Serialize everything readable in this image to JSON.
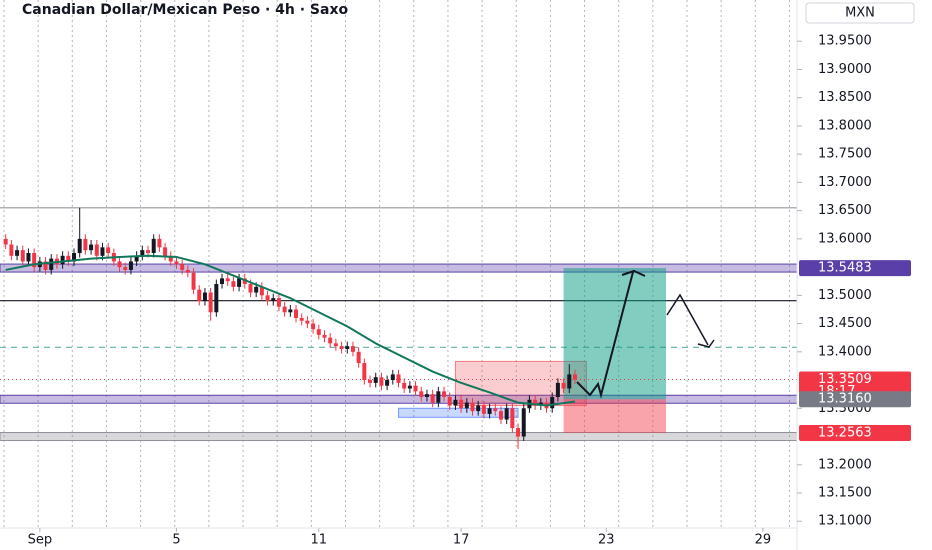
{
  "chart_data": {
    "type": "candlestick",
    "title": "Canadian Dollar/Mexican Peso · 4h · Saxo",
    "currency": "MXN",
    "xlim": [
      -1,
      139
    ],
    "xticks": [
      {
        "value": 6,
        "label": "Sep"
      },
      {
        "value": 30,
        "label": "5"
      },
      {
        "value": 55,
        "label": "11"
      },
      {
        "value": 80,
        "label": "17"
      },
      {
        "value": 105.5,
        "label": "23"
      },
      {
        "value": 133,
        "label": "29"
      }
    ],
    "ylim": [
      13.088,
      14.023
    ],
    "yticks": [
      {
        "value": 13.95,
        "label": "13.9500"
      },
      {
        "value": 13.9,
        "label": "13.9000"
      },
      {
        "value": 13.85,
        "label": "13.8500"
      },
      {
        "value": 13.8,
        "label": "13.8000"
      },
      {
        "value": 13.75,
        "label": "13.7500"
      },
      {
        "value": 13.7,
        "label": "13.7000"
      },
      {
        "value": 13.65,
        "label": "13.6500"
      },
      {
        "value": 13.6,
        "label": "13.6000"
      },
      {
        "value": 13.5,
        "label": "13.5000"
      },
      {
        "value": 13.45,
        "label": "13.4500"
      },
      {
        "value": 13.4,
        "label": "13.4000"
      },
      {
        "value": 13.3,
        "label": "13.3000"
      },
      {
        "value": 13.2,
        "label": "13.2000"
      },
      {
        "value": 13.15,
        "label": "13.1500"
      },
      {
        "value": 13.1,
        "label": "13.1000"
      }
    ],
    "up_color": "#131722",
    "down_color": "#f23645",
    "open": [
      13.6,
      13.59,
      13.57,
      13.58,
      13.56,
      13.575,
      13.55,
      13.56,
      13.545,
      13.565,
      13.555,
      13.57,
      13.56,
      13.575,
      13.6,
      13.58,
      13.59,
      13.57,
      13.585,
      13.575,
      13.56,
      13.55,
      13.545,
      13.56,
      13.57,
      13.58,
      13.575,
      13.6,
      13.585,
      13.57,
      13.56,
      13.555,
      13.545,
      13.54,
      13.51,
      13.49,
      13.505,
      13.47,
      13.52,
      13.53,
      13.525,
      13.515,
      13.53,
      13.52,
      13.505,
      13.515,
      13.5,
      13.49,
      13.495,
      13.48,
      13.47,
      13.475,
      13.46,
      13.455,
      13.45,
      13.44,
      13.43,
      13.425,
      13.415,
      13.41,
      13.405,
      13.41,
      13.4,
      13.38,
      13.35,
      13.345,
      13.355,
      13.34,
      13.35,
      13.36,
      13.345,
      13.335,
      13.34,
      13.33,
      13.32,
      13.325,
      13.31,
      13.33,
      13.32,
      13.305,
      13.315,
      13.3,
      13.31,
      13.295,
      13.305,
      13.29,
      13.3,
      13.295,
      13.28,
      13.3,
      13.265,
      13.25,
      13.3,
      13.315,
      13.305,
      13.31,
      13.3,
      13.32,
      13.345,
      13.335,
      13.36
    ],
    "high": [
      13.608,
      13.598,
      13.588,
      13.588,
      13.583,
      13.583,
      13.568,
      13.568,
      13.573,
      13.573,
      13.578,
      13.578,
      13.583,
      13.655,
      13.608,
      13.598,
      13.598,
      13.593,
      13.593,
      13.583,
      13.568,
      13.558,
      13.568,
      13.578,
      13.588,
      13.588,
      13.608,
      13.608,
      13.593,
      13.578,
      13.568,
      13.563,
      13.553,
      13.548,
      13.518,
      13.513,
      13.513,
      13.528,
      13.538,
      13.538,
      13.533,
      13.538,
      13.538,
      13.528,
      13.523,
      13.523,
      13.508,
      13.503,
      13.503,
      13.488,
      13.483,
      13.483,
      13.468,
      13.463,
      13.458,
      13.448,
      13.438,
      13.433,
      13.423,
      13.418,
      13.418,
      13.418,
      13.408,
      13.388,
      13.358,
      13.363,
      13.363,
      13.358,
      13.368,
      13.368,
      13.353,
      13.348,
      13.348,
      13.338,
      13.333,
      13.333,
      13.338,
      13.338,
      13.328,
      13.323,
      13.323,
      13.318,
      13.318,
      13.313,
      13.313,
      13.308,
      13.308,
      13.303,
      13.308,
      13.308,
      13.273,
      13.308,
      13.323,
      13.323,
      13.318,
      13.318,
      13.328,
      13.353,
      13.353,
      13.378,
      13.368
    ],
    "low": [
      13.582,
      13.562,
      13.562,
      13.552,
      13.552,
      13.542,
      13.542,
      13.537,
      13.537,
      13.547,
      13.547,
      13.552,
      13.552,
      13.567,
      13.572,
      13.572,
      13.562,
      13.562,
      13.567,
      13.552,
      13.542,
      13.537,
      13.537,
      13.552,
      13.562,
      13.567,
      13.567,
      13.577,
      13.562,
      13.552,
      13.547,
      13.537,
      13.532,
      13.502,
      13.482,
      13.482,
      13.455,
      13.462,
      13.512,
      13.517,
      13.507,
      13.507,
      13.512,
      13.497,
      13.497,
      13.492,
      13.482,
      13.482,
      13.472,
      13.462,
      13.462,
      13.452,
      13.447,
      13.442,
      13.432,
      13.422,
      13.417,
      13.407,
      13.402,
      13.397,
      13.397,
      13.392,
      13.372,
      13.342,
      13.337,
      13.337,
      13.332,
      13.332,
      13.342,
      13.337,
      13.327,
      13.327,
      13.322,
      13.312,
      13.312,
      13.302,
      13.302,
      13.312,
      13.297,
      13.297,
      13.292,
      13.292,
      13.287,
      13.287,
      13.282,
      13.282,
      13.287,
      13.272,
      13.272,
      13.257,
      13.228,
      13.242,
      13.292,
      13.297,
      13.297,
      13.292,
      13.292,
      13.312,
      13.327,
      13.327,
      13.343
    ],
    "close": [
      13.59,
      13.57,
      13.58,
      13.56,
      13.575,
      13.55,
      13.56,
      13.545,
      13.565,
      13.555,
      13.57,
      13.56,
      13.575,
      13.6,
      13.58,
      13.59,
      13.57,
      13.585,
      13.575,
      13.56,
      13.55,
      13.545,
      13.56,
      13.57,
      13.58,
      13.575,
      13.6,
      13.585,
      13.57,
      13.56,
      13.555,
      13.545,
      13.54,
      13.51,
      13.49,
      13.505,
      13.47,
      13.52,
      13.53,
      13.525,
      13.515,
      13.53,
      13.52,
      13.505,
      13.515,
      13.5,
      13.49,
      13.495,
      13.48,
      13.47,
      13.475,
      13.46,
      13.455,
      13.45,
      13.44,
      13.43,
      13.425,
      13.415,
      13.41,
      13.405,
      13.41,
      13.4,
      13.38,
      13.35,
      13.345,
      13.355,
      13.34,
      13.35,
      13.36,
      13.345,
      13.335,
      13.34,
      13.33,
      13.32,
      13.325,
      13.31,
      13.33,
      13.32,
      13.305,
      13.315,
      13.3,
      13.31,
      13.295,
      13.305,
      13.29,
      13.3,
      13.295,
      13.28,
      13.3,
      13.265,
      13.25,
      13.3,
      13.315,
      13.305,
      13.31,
      13.3,
      13.32,
      13.345,
      13.335,
      13.36,
      13.351
    ],
    "ma": {
      "color": "#11775b",
      "x": [
        0,
        5,
        10,
        15,
        20,
        25,
        30,
        35,
        40,
        45,
        50,
        55,
        60,
        65,
        70,
        75,
        80,
        85,
        90,
        95,
        100
      ],
      "values": [
        13.545,
        13.555,
        13.56,
        13.565,
        13.568,
        13.57,
        13.568,
        13.555,
        13.535,
        13.515,
        13.495,
        13.47,
        13.445,
        13.415,
        13.39,
        13.365,
        13.345,
        13.328,
        13.31,
        13.305,
        13.312
      ]
    },
    "levels": [
      {
        "value": 13.655,
        "color": "#9598a1",
        "style": "line"
      },
      {
        "value": 13.5483,
        "color": "#5b3fa8",
        "style": "band"
      },
      {
        "value": 13.4905,
        "color": "#131722",
        "style": "line"
      },
      {
        "value": 13.408,
        "color": "#5fb3a8",
        "style": "dashed"
      },
      {
        "value": 13.316,
        "color": "#5b3fa8",
        "style": "band"
      },
      {
        "value": 13.25,
        "color": "#8f9098",
        "style": "band"
      }
    ],
    "zones": [
      {
        "x": [
          79,
          102
        ],
        "y": [
          13.305,
          13.383
        ],
        "color": "#f23645"
      },
      {
        "x": [
          69,
          90
        ],
        "y": [
          13.284,
          13.3
        ],
        "color": "#2962ff"
      }
    ],
    "position": {
      "start": 98,
      "end": 116,
      "entry": 13.316,
      "target": 13.5483,
      "stop": 13.2563
    },
    "price_labels": [
      {
        "value": 13.5483,
        "label": "13.5483",
        "color": "#5b3fa8",
        "text_color": "#ffffff"
      },
      {
        "value": 13.3509,
        "label": "13.3509",
        "color": "#f23645",
        "text_color": "#ffffff",
        "countdown": "18:17"
      },
      {
        "value": 13.316,
        "label": "13.3160",
        "color": "#787b86",
        "text_color": "#ffffff"
      },
      {
        "value": 13.2563,
        "label": "13.2563",
        "color": "#f23645",
        "text_color": "#ffffff"
      }
    ]
  }
}
